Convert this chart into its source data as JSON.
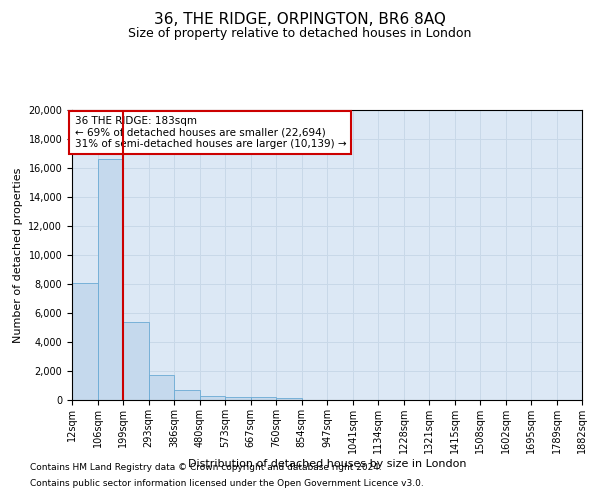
{
  "title_line1": "36, THE RIDGE, ORPINGTON, BR6 8AQ",
  "title_line2": "Size of property relative to detached houses in London",
  "xlabel": "Distribution of detached houses by size in London",
  "ylabel": "Number of detached properties",
  "bar_values": [
    8050,
    16650,
    5350,
    1750,
    700,
    310,
    200,
    175,
    130,
    0,
    0,
    0,
    0,
    0,
    0,
    0,
    0,
    0,
    0,
    0
  ],
  "categories": [
    "12sqm",
    "106sqm",
    "199sqm",
    "293sqm",
    "386sqm",
    "480sqm",
    "573sqm",
    "667sqm",
    "760sqm",
    "854sqm",
    "947sqm",
    "1041sqm",
    "1134sqm",
    "1228sqm",
    "1321sqm",
    "1415sqm",
    "1508sqm",
    "1602sqm",
    "1695sqm",
    "1789sqm",
    "1882sqm"
  ],
  "bar_color": "#c5d9ed",
  "bar_edgecolor": "#6aaad4",
  "grid_color": "#c8d8e8",
  "background_color": "#dce8f5",
  "vline_color": "#cc0000",
  "vline_pos": 2.0,
  "annotation_text": "36 THE RIDGE: 183sqm\n← 69% of detached houses are smaller (22,694)\n31% of semi-detached houses are larger (10,139) →",
  "annotation_box_edgecolor": "#cc0000",
  "ylim": [
    0,
    20000
  ],
  "yticks": [
    0,
    2000,
    4000,
    6000,
    8000,
    10000,
    12000,
    14000,
    16000,
    18000,
    20000
  ],
  "footnote1": "Contains HM Land Registry data © Crown copyright and database right 2024.",
  "footnote2": "Contains public sector information licensed under the Open Government Licence v3.0.",
  "title_fontsize": 11,
  "subtitle_fontsize": 9,
  "ylabel_fontsize": 8,
  "xlabel_fontsize": 8,
  "tick_fontsize": 7,
  "annot_fontsize": 7.5,
  "footnote_fontsize": 6.5
}
